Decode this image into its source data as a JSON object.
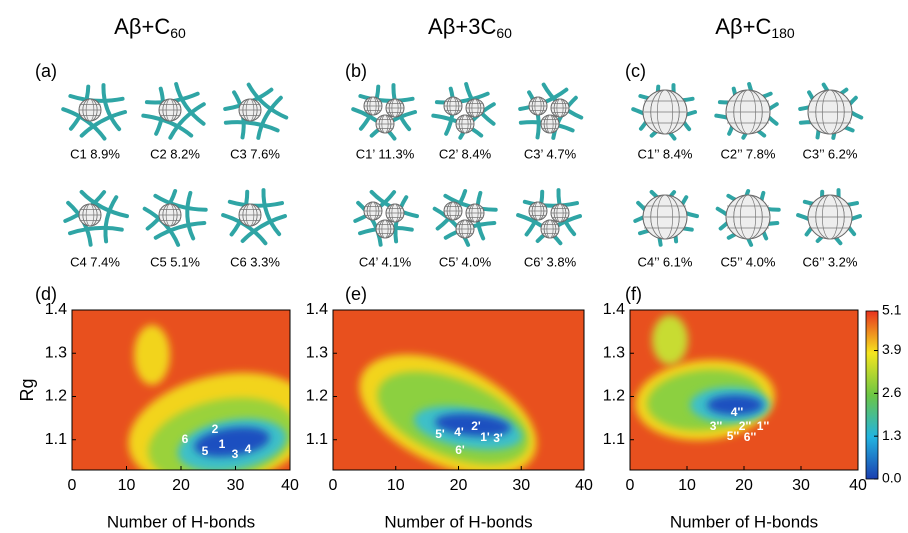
{
  "columns": [
    {
      "title": [
        "Aβ+C",
        "60"
      ],
      "structures_panel": "(a)",
      "structures": [
        "C1 8.9%",
        "C2 8.2%",
        "C3 7.6%",
        "C4 7.4%",
        "C5 5.1%",
        "C6 3.3%"
      ],
      "plot_panel": "(d)",
      "clusters": [
        "2",
        "6",
        "1",
        "5",
        "3",
        "4"
      ]
    },
    {
      "title": [
        "Aβ+3C",
        "60"
      ],
      "structures_panel": "(b)",
      "structures": [
        "C1’ 11.3%",
        "C2’ 8.4%",
        "C3’ 4.7%",
        "C4’ 4.1%",
        "C5’ 4.0%",
        "C6’ 3.8%"
      ],
      "plot_panel": "(e)",
      "clusters": [
        "2'",
        "4'",
        "5'",
        "1'",
        "3'",
        "6'"
      ]
    },
    {
      "title": [
        "Aβ+C",
        "180"
      ],
      "structures_panel": "(c)",
      "structures": [
        "C1’’ 8.4%",
        "C2’’ 7.8%",
        "C3’’ 6.2%",
        "C4’’ 6.1%",
        "C5’’ 4.0%",
        "C6’’ 3.2%"
      ],
      "plot_panel": "(f)",
      "clusters": [
        "4''",
        "3''",
        "2''",
        "1''",
        "5''",
        "6''"
      ]
    }
  ],
  "plot": {
    "xlim": [
      0,
      40
    ],
    "ylim": [
      1.03,
      1.4
    ],
    "xticks": [
      0,
      10,
      20,
      30,
      40
    ],
    "yticks": [
      1.1,
      1.2,
      1.3,
      1.4
    ],
    "xlabel": "Number of H-bonds",
    "ylabel": "Rg"
  },
  "colorbar": {
    "ticks": [
      {
        "value": 0,
        "label": "0.0"
      },
      1.3,
      2.6,
      3.9,
      5.1
    ]
  }
}
